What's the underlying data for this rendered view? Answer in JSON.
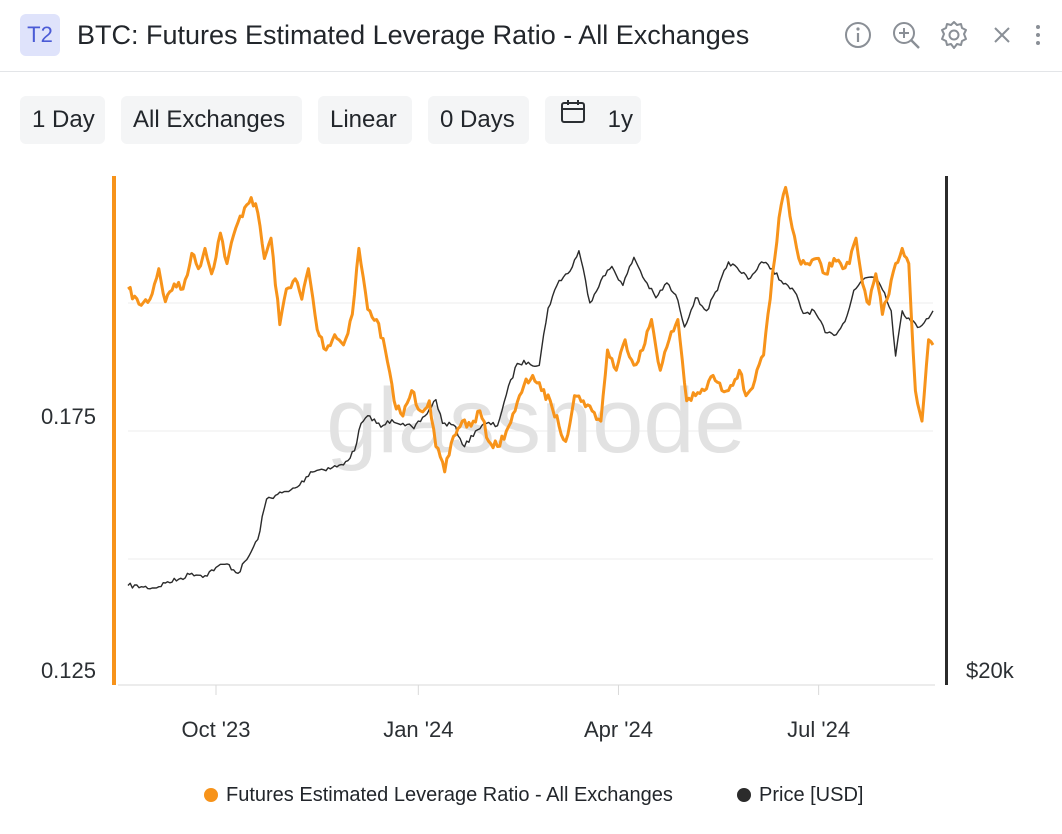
{
  "header": {
    "badge": "T2",
    "title": "BTC: Futures Estimated Leverage Ratio - All Exchanges",
    "icons": [
      "info-icon",
      "zoom-in-icon",
      "gear-icon",
      "close-icon",
      "more-vertical-icon"
    ]
  },
  "toolbar": {
    "resolution": "1 Day",
    "exchange": "All Exchanges",
    "scale": "Linear",
    "smoothing": "0 Days",
    "range": "1y",
    "range_icon": "calendar-icon"
  },
  "colors": {
    "leverage": "#f7931a",
    "price": "#2b2b2b",
    "grid": "#ececec",
    "watermark": "#e2e2e2"
  },
  "chart_data": {
    "type": "line",
    "watermark": "glassnode",
    "x_ticks": [
      "Oct '23",
      "Jan '24",
      "Apr '24",
      "Jul '24"
    ],
    "x_range": [
      "2023-08-22",
      "2024-08-22"
    ],
    "left_axis": {
      "ticks": [
        "0.175",
        "0.125"
      ],
      "ylim": [
        0.125,
        0.225
      ]
    },
    "right_axis": {
      "ticks": [
        "$20k"
      ]
    },
    "grid": true,
    "legend_position": "bottom",
    "series": [
      {
        "name": "Futures Estimated Leverage Ratio - All Exchanges",
        "axis": "left",
        "points": [
          [
            "2023-08-22",
            0.2
          ],
          [
            "2023-08-27",
            0.197
          ],
          [
            "2023-09-01",
            0.198
          ],
          [
            "2023-09-05",
            0.204
          ],
          [
            "2023-09-08",
            0.1975
          ],
          [
            "2023-09-12",
            0.201
          ],
          [
            "2023-09-16",
            0.2
          ],
          [
            "2023-09-20",
            0.207
          ],
          [
            "2023-09-23",
            0.204
          ],
          [
            "2023-09-26",
            0.208
          ],
          [
            "2023-09-29",
            0.203
          ],
          [
            "2023-10-03",
            0.211
          ],
          [
            "2023-10-06",
            0.205
          ],
          [
            "2023-10-10",
            0.212
          ],
          [
            "2023-10-14",
            0.216
          ],
          [
            "2023-10-17",
            0.218
          ],
          [
            "2023-10-20",
            0.215
          ],
          [
            "2023-10-23",
            0.206
          ],
          [
            "2023-10-26",
            0.21
          ],
          [
            "2023-10-30",
            0.193
          ],
          [
            "2023-11-02",
            0.2
          ],
          [
            "2023-11-06",
            0.202
          ],
          [
            "2023-11-09",
            0.198
          ],
          [
            "2023-11-12",
            0.204
          ],
          [
            "2023-11-16",
            0.192
          ],
          [
            "2023-11-20",
            0.188
          ],
          [
            "2023-11-24",
            0.191
          ],
          [
            "2023-11-28",
            0.189
          ],
          [
            "2023-12-02",
            0.195
          ],
          [
            "2023-12-05",
            0.208
          ],
          [
            "2023-12-09",
            0.196
          ],
          [
            "2023-12-13",
            0.194
          ],
          [
            "2023-12-17",
            0.188
          ],
          [
            "2023-12-21",
            0.178
          ],
          [
            "2023-12-25",
            0.175
          ],
          [
            "2023-12-29",
            0.18
          ],
          [
            "2024-01-02",
            0.176
          ],
          [
            "2024-01-06",
            0.178
          ],
          [
            "2024-01-09",
            0.169
          ],
          [
            "2024-01-13",
            0.164
          ],
          [
            "2024-01-17",
            0.171
          ],
          [
            "2024-01-21",
            0.174
          ],
          [
            "2024-01-25",
            0.173
          ],
          [
            "2024-01-29",
            0.176
          ],
          [
            "2024-02-02",
            0.17
          ],
          [
            "2024-02-06",
            0.169
          ],
          [
            "2024-02-10",
            0.172
          ],
          [
            "2024-02-14",
            0.176
          ],
          [
            "2024-02-18",
            0.181
          ],
          [
            "2024-02-22",
            0.183
          ],
          [
            "2024-02-26",
            0.18
          ],
          [
            "2024-03-01",
            0.178
          ],
          [
            "2024-03-05",
            0.173
          ],
          [
            "2024-03-08",
            0.17
          ],
          [
            "2024-03-12",
            0.179
          ],
          [
            "2024-03-16",
            0.178
          ],
          [
            "2024-03-20",
            0.176
          ],
          [
            "2024-03-24",
            0.174
          ],
          [
            "2024-03-27",
            0.188
          ],
          [
            "2024-03-31",
            0.184
          ],
          [
            "2024-04-04",
            0.19
          ],
          [
            "2024-04-08",
            0.185
          ],
          [
            "2024-04-12",
            0.188
          ],
          [
            "2024-04-16",
            0.194
          ],
          [
            "2024-04-20",
            0.184
          ],
          [
            "2024-04-24",
            0.19
          ],
          [
            "2024-04-28",
            0.194
          ],
          [
            "2024-05-02",
            0.178
          ],
          [
            "2024-05-06",
            0.179
          ],
          [
            "2024-05-10",
            0.18
          ],
          [
            "2024-05-14",
            0.183
          ],
          [
            "2024-05-18",
            0.18
          ],
          [
            "2024-05-22",
            0.181
          ],
          [
            "2024-05-26",
            0.184
          ],
          [
            "2024-05-29",
            0.179
          ],
          [
            "2024-06-02",
            0.182
          ],
          [
            "2024-06-06",
            0.187
          ],
          [
            "2024-06-09",
            0.198
          ],
          [
            "2024-06-13",
            0.214
          ],
          [
            "2024-06-16",
            0.22
          ],
          [
            "2024-06-19",
            0.212
          ],
          [
            "2024-06-22",
            0.206
          ],
          [
            "2024-06-26",
            0.205
          ],
          [
            "2024-06-30",
            0.206
          ],
          [
            "2024-07-04",
            0.203
          ],
          [
            "2024-07-08",
            0.206
          ],
          [
            "2024-07-12",
            0.204
          ],
          [
            "2024-07-15",
            0.205
          ],
          [
            "2024-07-18",
            0.21
          ],
          [
            "2024-07-21",
            0.201
          ],
          [
            "2024-07-24",
            0.197
          ],
          [
            "2024-07-27",
            0.203
          ],
          [
            "2024-07-30",
            0.195
          ],
          [
            "2024-08-02",
            0.199
          ],
          [
            "2024-08-05",
            0.205
          ],
          [
            "2024-08-08",
            0.208
          ],
          [
            "2024-08-11",
            0.205
          ],
          [
            "2024-08-14",
            0.18
          ],
          [
            "2024-08-17",
            0.174
          ],
          [
            "2024-08-20",
            0.19
          ],
          [
            "2024-08-22",
            0.189
          ]
        ]
      },
      {
        "name": "Price [USD]",
        "axis": "right",
        "points": [
          [
            "2023-08-22",
            26000
          ],
          [
            "2023-08-28",
            25900
          ],
          [
            "2023-09-03",
            25800
          ],
          [
            "2023-09-08",
            26200
          ],
          [
            "2023-09-14",
            26500
          ],
          [
            "2023-09-20",
            27000
          ],
          [
            "2023-09-26",
            26800
          ],
          [
            "2023-10-01",
            27500
          ],
          [
            "2023-10-06",
            27800
          ],
          [
            "2023-10-11",
            27000
          ],
          [
            "2023-10-16",
            28500
          ],
          [
            "2023-10-20",
            30000
          ],
          [
            "2023-10-24",
            34000
          ],
          [
            "2023-10-29",
            34500
          ],
          [
            "2023-11-03",
            34800
          ],
          [
            "2023-11-08",
            35500
          ],
          [
            "2023-11-13",
            37000
          ],
          [
            "2023-11-18",
            37300
          ],
          [
            "2023-11-23",
            37500
          ],
          [
            "2023-11-28",
            37800
          ],
          [
            "2023-12-03",
            39500
          ],
          [
            "2023-12-06",
            43000
          ],
          [
            "2023-12-10",
            44000
          ],
          [
            "2023-12-15",
            42500
          ],
          [
            "2023-12-20",
            43500
          ],
          [
            "2023-12-25",
            43000
          ],
          [
            "2023-12-30",
            42300
          ],
          [
            "2024-01-04",
            44000
          ],
          [
            "2024-01-09",
            46300
          ],
          [
            "2024-01-12",
            43000
          ],
          [
            "2024-01-17",
            42800
          ],
          [
            "2024-01-22",
            40000
          ],
          [
            "2024-01-27",
            42000
          ],
          [
            "2024-02-01",
            43000
          ],
          [
            "2024-02-06",
            42700
          ],
          [
            "2024-02-10",
            47000
          ],
          [
            "2024-02-15",
            51800
          ],
          [
            "2024-02-20",
            52000
          ],
          [
            "2024-02-25",
            51500
          ],
          [
            "2024-02-29",
            61500
          ],
          [
            "2024-03-05",
            67000
          ],
          [
            "2024-03-10",
            69000
          ],
          [
            "2024-03-14",
            73500
          ],
          [
            "2024-03-19",
            62500
          ],
          [
            "2024-03-24",
            67000
          ],
          [
            "2024-03-29",
            70000
          ],
          [
            "2024-04-03",
            66000
          ],
          [
            "2024-04-08",
            72000
          ],
          [
            "2024-04-13",
            67000
          ],
          [
            "2024-04-18",
            63500
          ],
          [
            "2024-04-23",
            66500
          ],
          [
            "2024-04-28",
            63000
          ],
          [
            "2024-05-01",
            58000
          ],
          [
            "2024-05-06",
            63500
          ],
          [
            "2024-05-11",
            61000
          ],
          [
            "2024-05-16",
            65000
          ],
          [
            "2024-05-21",
            71000
          ],
          [
            "2024-05-26",
            69000
          ],
          [
            "2024-05-31",
            67500
          ],
          [
            "2024-06-05",
            71000
          ],
          [
            "2024-06-10",
            69500
          ],
          [
            "2024-06-15",
            66300
          ],
          [
            "2024-06-20",
            64800
          ],
          [
            "2024-06-24",
            60500
          ],
          [
            "2024-06-29",
            61000
          ],
          [
            "2024-07-04",
            57000
          ],
          [
            "2024-07-08",
            56500
          ],
          [
            "2024-07-13",
            59000
          ],
          [
            "2024-07-17",
            65000
          ],
          [
            "2024-07-22",
            67500
          ],
          [
            "2024-07-27",
            68000
          ],
          [
            "2024-07-31",
            64500
          ],
          [
            "2024-08-03",
            61000
          ],
          [
            "2024-08-05",
            53000
          ],
          [
            "2024-08-08",
            61000
          ],
          [
            "2024-08-12",
            59000
          ],
          [
            "2024-08-16",
            58000
          ],
          [
            "2024-08-19",
            59500
          ],
          [
            "2024-08-22",
            61000
          ]
        ]
      }
    ]
  },
  "legend": {
    "item1": "Futures Estimated Leverage Ratio - All Exchanges",
    "item2": "Price [USD]"
  }
}
